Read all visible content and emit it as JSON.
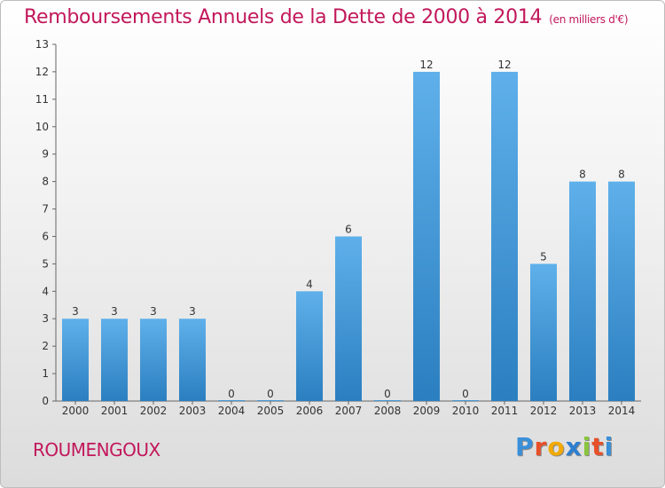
{
  "title": "Remboursements Annuels de la Dette de 2000 à 2014",
  "unit": "(en milliers d'€)",
  "commune": "ROUMENGOUX",
  "brand": {
    "text": "Proxiti",
    "letters": [
      "P",
      "r",
      "o",
      "x",
      "i",
      "t",
      "i"
    ],
    "colors": [
      "#3a8fd8",
      "#e8502a",
      "#f2a900",
      "#2d7fd0",
      "#8bc53f",
      "#e8502a",
      "#3a8fd8"
    ]
  },
  "colors": {
    "title": "#c2185b",
    "bar_light": "#5fb0ea",
    "bar_dark": "#2b7fc0"
  },
  "chart_data": {
    "type": "bar",
    "categories": [
      "2000",
      "2001",
      "2002",
      "2003",
      "2004",
      "2005",
      "2006",
      "2007",
      "2008",
      "2009",
      "2010",
      "2011",
      "2012",
      "2013",
      "2014"
    ],
    "values": [
      3,
      3,
      3,
      3,
      0,
      0,
      4,
      6,
      0,
      12,
      0,
      12,
      5,
      8,
      8
    ],
    "title": "Remboursements Annuels de la Dette de 2000 à 2014",
    "ylim": [
      0,
      13
    ],
    "yticks": [
      0,
      1,
      2,
      3,
      4,
      5,
      6,
      7,
      8,
      9,
      10,
      11,
      12,
      13
    ],
    "grid": false,
    "legend": "none"
  }
}
